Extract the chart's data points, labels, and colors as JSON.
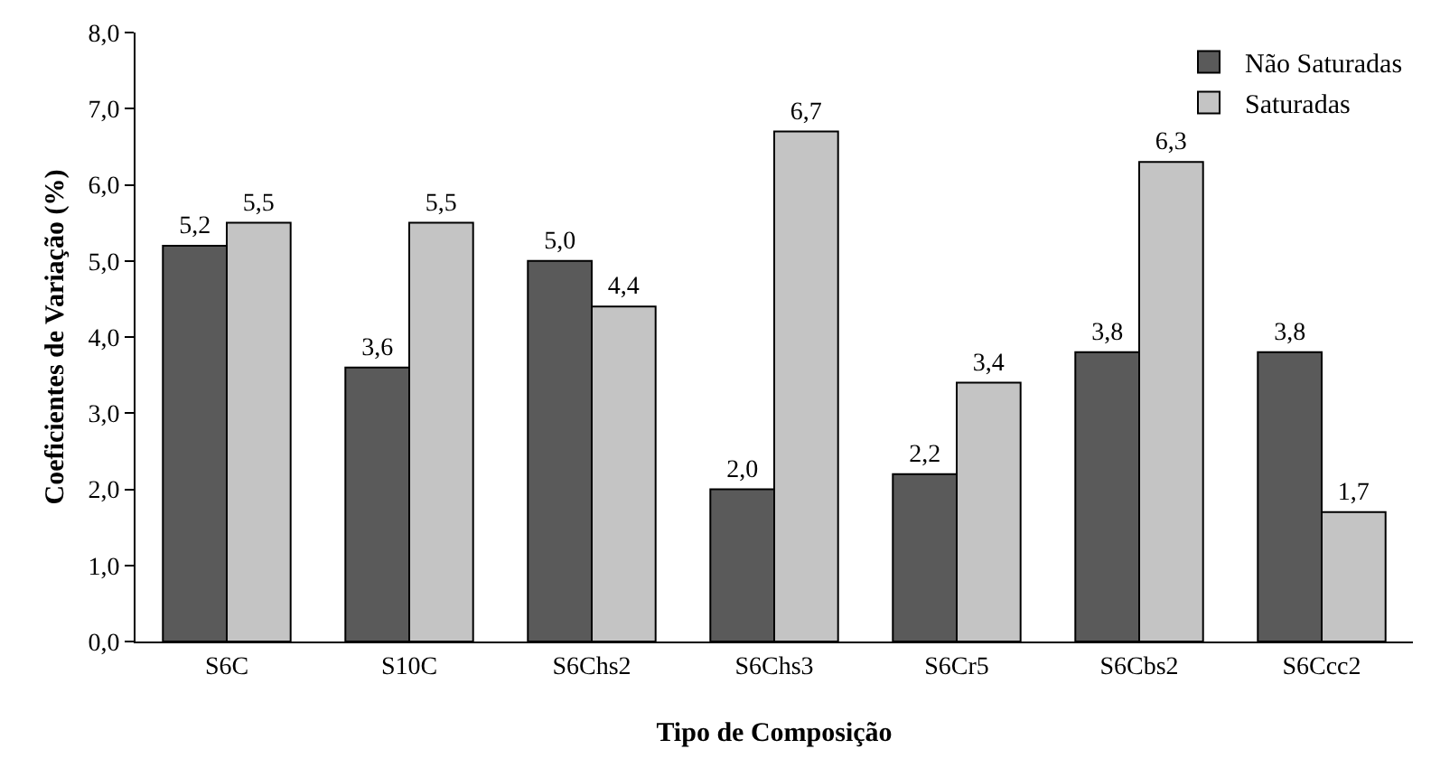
{
  "chart_data": {
    "type": "bar",
    "xlabel": "Tipo de Composição",
    "ylabel": "Coeficientes de Variação (%)",
    "categories": [
      "S6C",
      "S10C",
      "S6Chs2",
      "S6Chs3",
      "S6Cr5",
      "S6Cbs2",
      "S6Ccc2"
    ],
    "series": [
      {
        "name": "Não Saturadas",
        "color": "#5a5a5a",
        "values": [
          5.2,
          3.6,
          5.0,
          2.0,
          2.2,
          3.8,
          3.8
        ],
        "value_labels": [
          "5,2",
          "3,6",
          "5,0",
          "2,0",
          "2,2",
          "3,8",
          "3,8"
        ]
      },
      {
        "name": "Saturadas",
        "color": "#c4c4c4",
        "values": [
          5.5,
          5.5,
          4.4,
          6.7,
          3.4,
          6.3,
          1.7
        ],
        "value_labels": [
          "5,5",
          "5,5",
          "4,4",
          "6,7",
          "3,4",
          "6,3",
          "1,7"
        ]
      }
    ],
    "ylim": [
      0,
      8
    ],
    "yticks": [
      {
        "value": 0,
        "label": "0,0"
      },
      {
        "value": 1,
        "label": "1,0"
      },
      {
        "value": 2,
        "label": "2,0"
      },
      {
        "value": 3,
        "label": "3,0"
      },
      {
        "value": 4,
        "label": "4,0"
      },
      {
        "value": 5,
        "label": "5,0"
      },
      {
        "value": 6,
        "label": "6,0"
      },
      {
        "value": 7,
        "label": "7,0"
      },
      {
        "value": 8,
        "label": "8,0"
      }
    ],
    "grid": false,
    "legend": "top right"
  }
}
